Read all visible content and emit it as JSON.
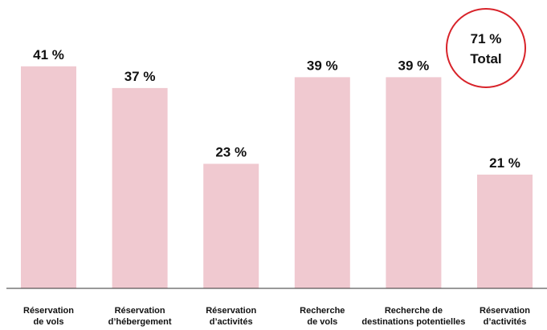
{
  "chart_data": {
    "type": "bar",
    "categories": [
      [
        "Réservation",
        "de vols"
      ],
      [
        "Réservation",
        "d’hébergement"
      ],
      [
        "Réservation",
        "d’activités"
      ],
      [
        "Recherche",
        "de vols"
      ],
      [
        "Recherche de",
        "destinations potentielles"
      ],
      [
        "Réservation",
        "d’activités"
      ]
    ],
    "values": [
      41,
      37,
      23,
      39,
      39,
      21
    ],
    "value_labels": [
      "41 %",
      "37 %",
      "23 %",
      "39 %",
      "39 %",
      "21 %"
    ],
    "ylim": [
      0,
      50
    ],
    "grid": false,
    "title": "",
    "xlabel": "",
    "ylabel": ""
  },
  "total_badge": {
    "value": "71 %",
    "label": "Total"
  },
  "colors": {
    "bar": "#f0c9d0",
    "badge_border": "#d8232a",
    "axis": "#333333",
    "text": "#111111"
  }
}
